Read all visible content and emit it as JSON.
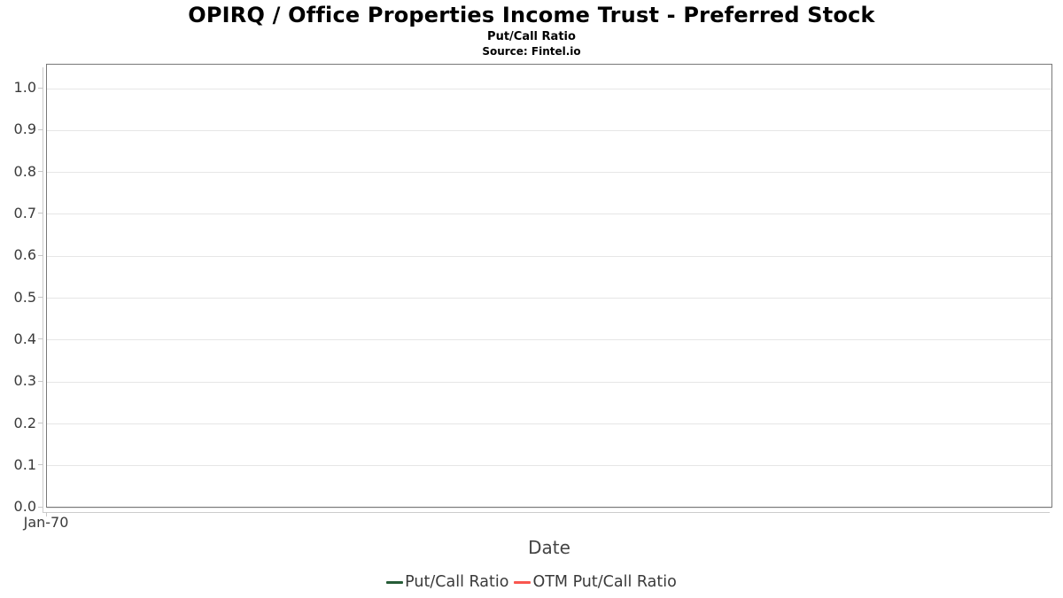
{
  "header": {
    "title": "OPIRQ / Office Properties Income Trust - Preferred Stock",
    "subtitle": "Put/Call Ratio",
    "source": "Source: Fintel.io"
  },
  "chart_data": {
    "type": "line",
    "title": "OPIRQ / Office Properties Income Trust - Preferred Stock",
    "subtitle": "Put/Call Ratio",
    "source": "Source: Fintel.io",
    "xlabel": "Date",
    "ylabel": "",
    "ylim": [
      0.0,
      1.05
    ],
    "grid": true,
    "legend_position": "bottom",
    "y_ticks": [
      {
        "value": 0.0,
        "label": "0.0"
      },
      {
        "value": 0.1,
        "label": "0.1"
      },
      {
        "value": 0.2,
        "label": "0.2"
      },
      {
        "value": 0.3,
        "label": "0.3"
      },
      {
        "value": 0.4,
        "label": "0.4"
      },
      {
        "value": 0.5,
        "label": "0.5"
      },
      {
        "value": 0.6,
        "label": "0.6"
      },
      {
        "value": 0.7,
        "label": "0.7"
      },
      {
        "value": 0.8,
        "label": "0.8"
      },
      {
        "value": 0.9,
        "label": "0.9"
      },
      {
        "value": 1.0,
        "label": "1.0"
      }
    ],
    "x_ticks": [
      {
        "label": "Jan-70",
        "position": 0.0
      }
    ],
    "series": [
      {
        "name": "Put/Call Ratio",
        "color": "#265c37",
        "x": [],
        "values": []
      },
      {
        "name": "OTM Put/Call Ratio",
        "color": "#f9564f",
        "x": [],
        "values": []
      }
    ]
  },
  "colors": {
    "plot_border": "#787878",
    "gridline": "#e6e6e6",
    "axis_line": "#cccccc",
    "tick_label": "#3a3a3a",
    "axis_title": "#444444",
    "series_put_call": "#265c37",
    "series_otm_put_call": "#f9564f"
  }
}
